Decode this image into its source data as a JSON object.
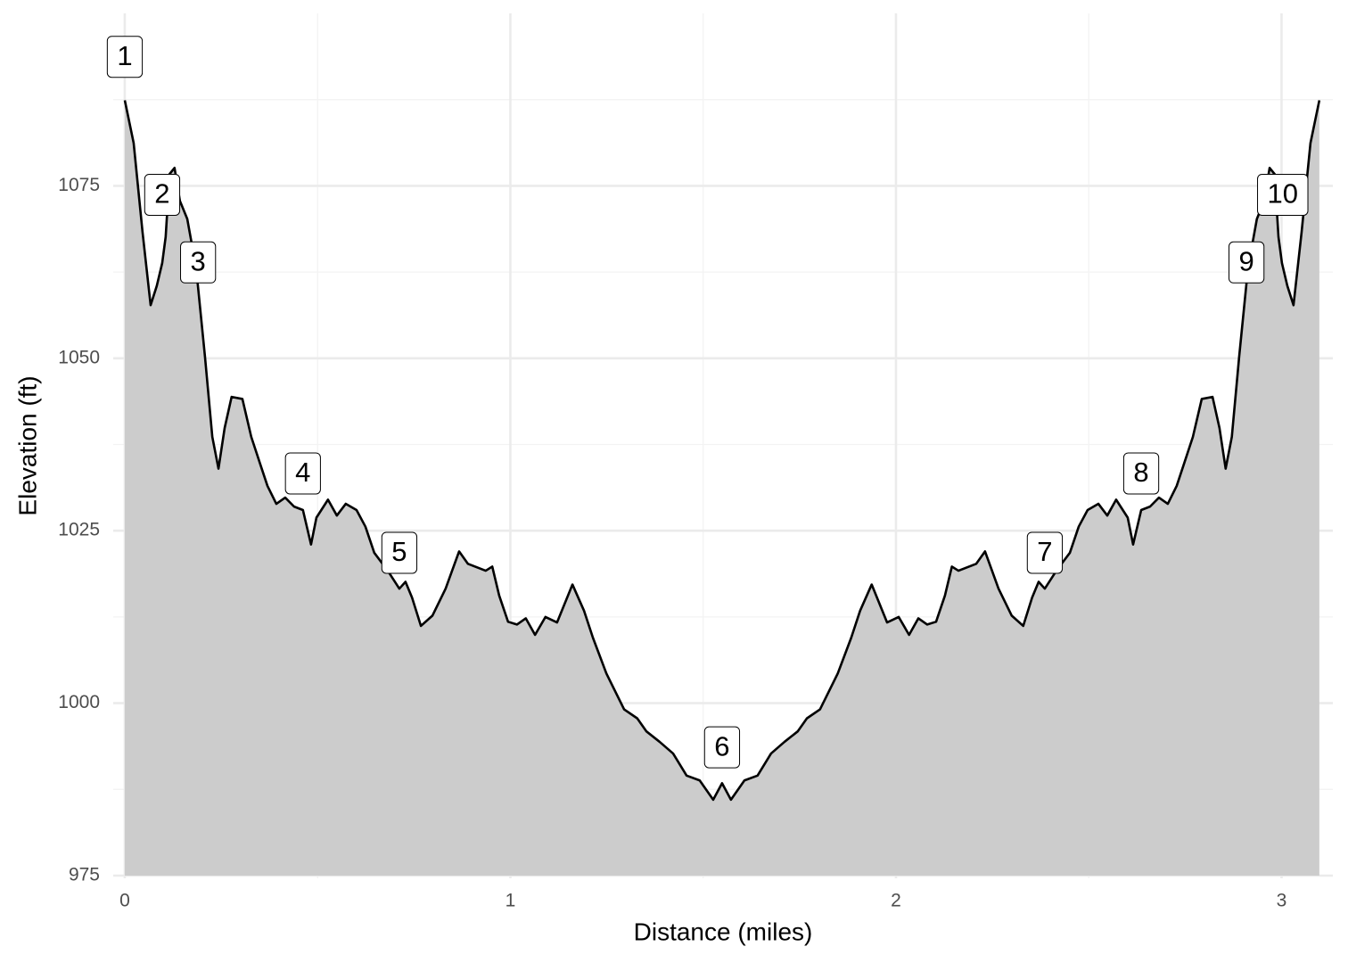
{
  "chart_data": {
    "type": "area",
    "x_label": "Distance (miles)",
    "y_label": "Elevation (ft)",
    "xlim": [
      -0.03,
      3.133
    ],
    "ylim": [
      975,
      1100
    ],
    "xticks": [
      0,
      1,
      2,
      3
    ],
    "yticks": [
      975,
      1000,
      1025,
      1050,
      1075
    ],
    "x_minor_gridlines": [
      0.5,
      1.5,
      2.5
    ],
    "y_minor_gridlines": [
      987.5,
      1012.5,
      1037.5,
      1062.5,
      1087.5
    ],
    "grid": true,
    "fill_color": "#cccccc",
    "line_color": "#000000",
    "x": [
      0.0,
      0.023,
      0.046,
      0.067,
      0.083,
      0.097,
      0.106,
      0.116,
      0.129,
      0.143,
      0.162,
      0.185,
      0.208,
      0.227,
      0.243,
      0.259,
      0.277,
      0.305,
      0.328,
      0.351,
      0.37,
      0.393,
      0.416,
      0.439,
      0.462,
      0.483,
      0.497,
      0.527,
      0.55,
      0.573,
      0.601,
      0.624,
      0.647,
      0.682,
      0.712,
      0.728,
      0.745,
      0.768,
      0.798,
      0.832,
      0.867,
      0.89,
      0.913,
      0.936,
      0.953,
      0.971,
      0.994,
      1.017,
      1.04,
      1.064,
      1.091,
      1.121,
      1.161,
      1.191,
      1.214,
      1.249,
      1.295,
      1.329,
      1.353,
      1.387,
      1.422,
      1.457,
      1.491,
      1.526,
      1.549,
      1.572,
      1.607,
      1.641,
      1.676,
      1.711,
      1.745,
      1.769,
      1.803,
      1.849,
      1.884,
      1.907,
      1.937,
      1.977,
      2.007,
      2.034,
      2.058,
      2.081,
      2.104,
      2.127,
      2.145,
      2.162,
      2.185,
      2.208,
      2.231,
      2.266,
      2.3,
      2.33,
      2.353,
      2.37,
      2.386,
      2.416,
      2.451,
      2.474,
      2.497,
      2.525,
      2.548,
      2.571,
      2.601,
      2.615,
      2.636,
      2.659,
      2.682,
      2.705,
      2.728,
      2.747,
      2.77,
      2.793,
      2.821,
      2.839,
      2.855,
      2.871,
      2.89,
      2.913,
      2.936,
      2.955,
      2.969,
      2.982,
      2.992,
      3.001,
      3.015,
      3.031,
      3.052,
      3.075,
      3.098
    ],
    "values": [
      1087.4,
      1081.2,
      1068.3,
      1057.7,
      1060.5,
      1063.8,
      1067.6,
      1076.7,
      1077.6,
      1072.8,
      1070.2,
      1063.1,
      1050.2,
      1038.6,
      1034.0,
      1039.9,
      1044.4,
      1044.1,
      1038.6,
      1034.7,
      1031.5,
      1028.9,
      1029.8,
      1028.5,
      1028.0,
      1023.0,
      1026.9,
      1029.5,
      1027.2,
      1028.9,
      1028.0,
      1025.6,
      1021.8,
      1019.2,
      1016.6,
      1017.6,
      1015.3,
      1011.2,
      1012.7,
      1016.6,
      1022.0,
      1020.2,
      1019.7,
      1019.2,
      1019.8,
      1015.6,
      1011.8,
      1011.4,
      1012.3,
      1009.9,
      1012.5,
      1011.7,
      1017.2,
      1013.4,
      1009.5,
      1004.3,
      999.1,
      997.8,
      995.9,
      994.4,
      992.7,
      989.5,
      988.8,
      986.0,
      988.4,
      986.0,
      988.8,
      989.5,
      992.7,
      994.4,
      995.9,
      997.8,
      999.1,
      1004.3,
      1009.5,
      1013.4,
      1017.2,
      1011.7,
      1012.5,
      1009.9,
      1012.3,
      1011.4,
      1011.8,
      1015.6,
      1019.8,
      1019.2,
      1019.7,
      1020.2,
      1022.0,
      1016.6,
      1012.7,
      1011.2,
      1015.3,
      1017.6,
      1016.6,
      1019.2,
      1021.8,
      1025.6,
      1028.0,
      1028.9,
      1027.2,
      1029.5,
      1026.9,
      1023.0,
      1028.0,
      1028.5,
      1029.8,
      1028.9,
      1031.5,
      1034.7,
      1038.6,
      1044.1,
      1044.4,
      1039.9,
      1034.0,
      1038.6,
      1050.2,
      1063.1,
      1070.2,
      1072.8,
      1077.6,
      1076.7,
      1067.6,
      1063.8,
      1060.5,
      1057.7,
      1068.3,
      1081.2,
      1087.4
    ],
    "markers": [
      {
        "label": "1",
        "x": 0.0,
        "y": 1093.7
      },
      {
        "label": "2",
        "x": 0.097,
        "y": 1073.7
      },
      {
        "label": "3",
        "x": 0.19,
        "y": 1063.9
      },
      {
        "label": "4",
        "x": 0.462,
        "y": 1033.3
      },
      {
        "label": "5",
        "x": 0.712,
        "y": 1021.8
      },
      {
        "label": "6",
        "x": 1.549,
        "y": 993.6
      },
      {
        "label": "7",
        "x": 2.386,
        "y": 1021.8
      },
      {
        "label": "8",
        "x": 2.636,
        "y": 1033.3
      },
      {
        "label": "9",
        "x": 2.909,
        "y": 1063.9
      },
      {
        "label": "10",
        "x": 3.003,
        "y": 1073.7
      }
    ]
  }
}
